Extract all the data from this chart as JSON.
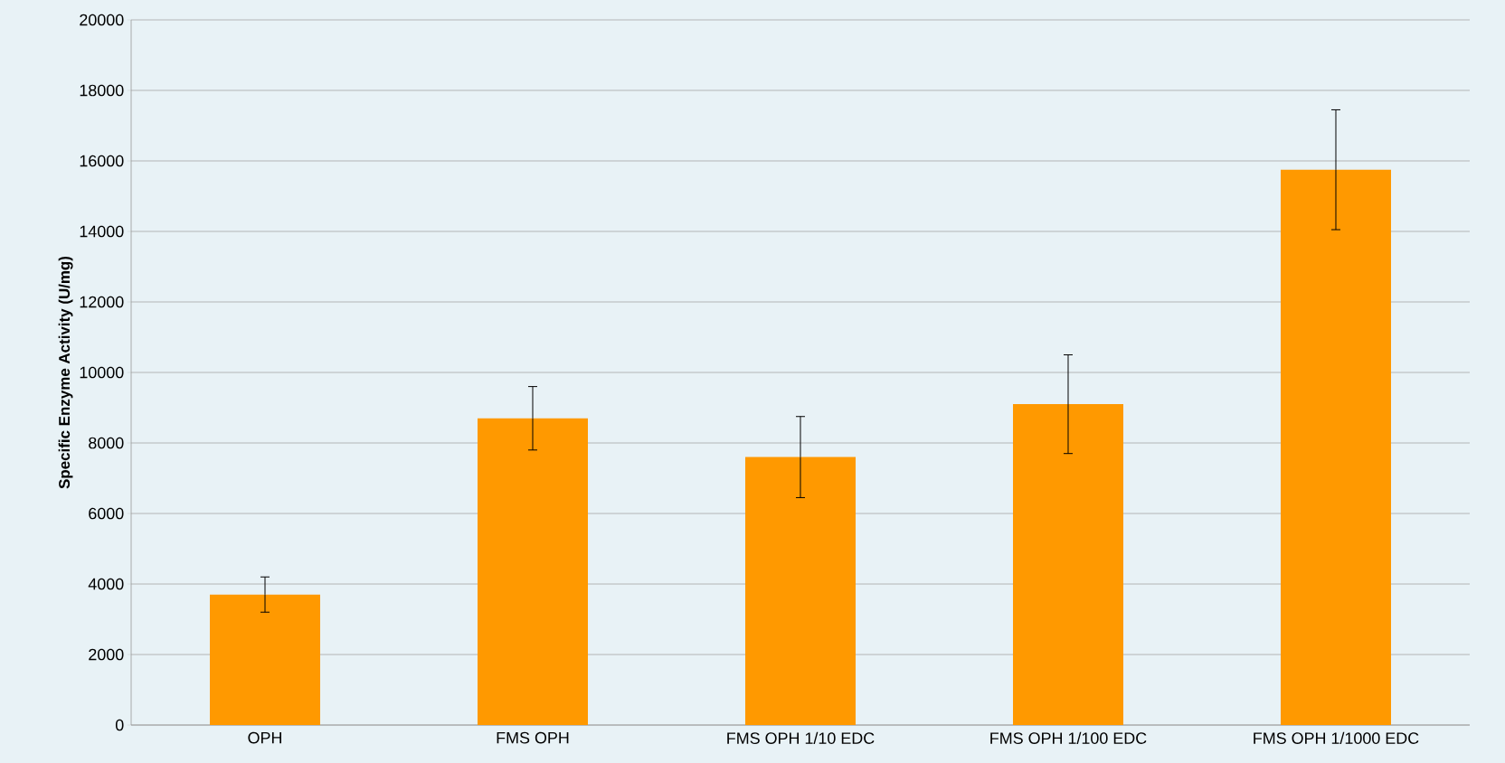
{
  "chart_data": {
    "type": "bar",
    "ylabel": "Specific Enzyme Activity (U/mg)",
    "categories": [
      "OPH",
      "FMS OPH",
      "FMS OPH 1/10 EDC",
      "FMS OPH 1/100 EDC",
      "FMS OPH 1/1000 EDC"
    ],
    "values": [
      3700,
      8700,
      7600,
      9100,
      15750
    ],
    "errors": [
      500,
      900,
      1150,
      1400,
      1700
    ],
    "color": "#ff9900",
    "ylim": [
      0,
      20000
    ],
    "yticks": [
      0,
      2000,
      4000,
      6000,
      8000,
      10000,
      12000,
      14000,
      16000,
      18000,
      20000
    ],
    "grid": "y"
  }
}
